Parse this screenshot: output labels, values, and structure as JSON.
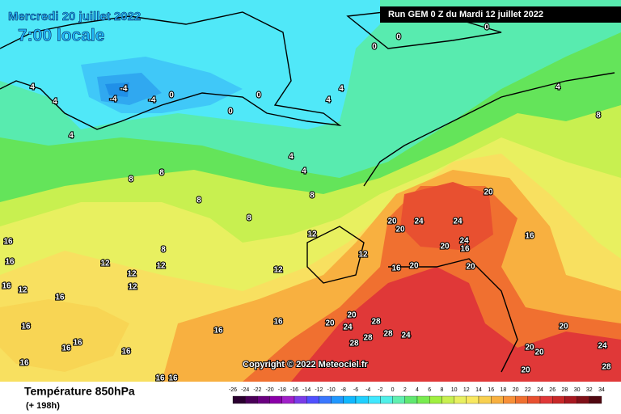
{
  "header": {
    "date": "Mercredi 20 juillet 2022",
    "time": "7:00 locale",
    "run": "Run GEM 0 Z du Mardi 12 juillet 2022"
  },
  "copyright": "Copyright © 2022 Meteociel.fr",
  "footer": {
    "title": "Température 850hPa",
    "lead": "(+ 198h)"
  },
  "legend": {
    "ticks": [
      -26,
      -24,
      -22,
      -20,
      -18,
      -16,
      -14,
      -12,
      -10,
      -8,
      -6,
      -4,
      -2,
      0,
      2,
      4,
      6,
      8,
      10,
      12,
      14,
      16,
      18,
      20,
      22,
      24,
      26,
      28,
      30,
      32,
      34
    ],
    "colors": [
      "#2a0030",
      "#4a0058",
      "#6a0080",
      "#8a00a8",
      "#a020c8",
      "#7a3ce8",
      "#5050ff",
      "#3a78ff",
      "#2098ff",
      "#10b8ff",
      "#20d0ff",
      "#40e8ff",
      "#50f0e8",
      "#60f0b0",
      "#60e870",
      "#78ec50",
      "#a0f040",
      "#c8f050",
      "#e8f060",
      "#f8e860",
      "#f8d050",
      "#f8b040",
      "#f89038",
      "#f07030",
      "#e85030",
      "#e03838",
      "#c82828",
      "#a81820",
      "#801018",
      "#500810"
    ]
  },
  "contour_labels": [
    0,
    0,
    0,
    -4,
    -4,
    -4,
    0,
    0,
    0,
    4,
    4,
    4,
    4,
    4,
    4,
    4,
    4,
    8,
    8,
    8,
    8,
    8,
    8,
    8,
    12,
    12,
    12,
    12,
    12,
    12,
    12,
    12,
    16,
    16,
    16,
    16,
    16,
    16,
    16,
    16,
    16,
    16,
    16,
    16,
    16,
    16,
    16,
    16,
    20,
    20,
    20,
    20,
    20,
    20,
    20,
    20,
    20,
    20,
    20,
    20,
    24,
    24,
    24,
    24,
    24,
    24,
    28,
    28,
    28,
    28,
    28
  ]
}
